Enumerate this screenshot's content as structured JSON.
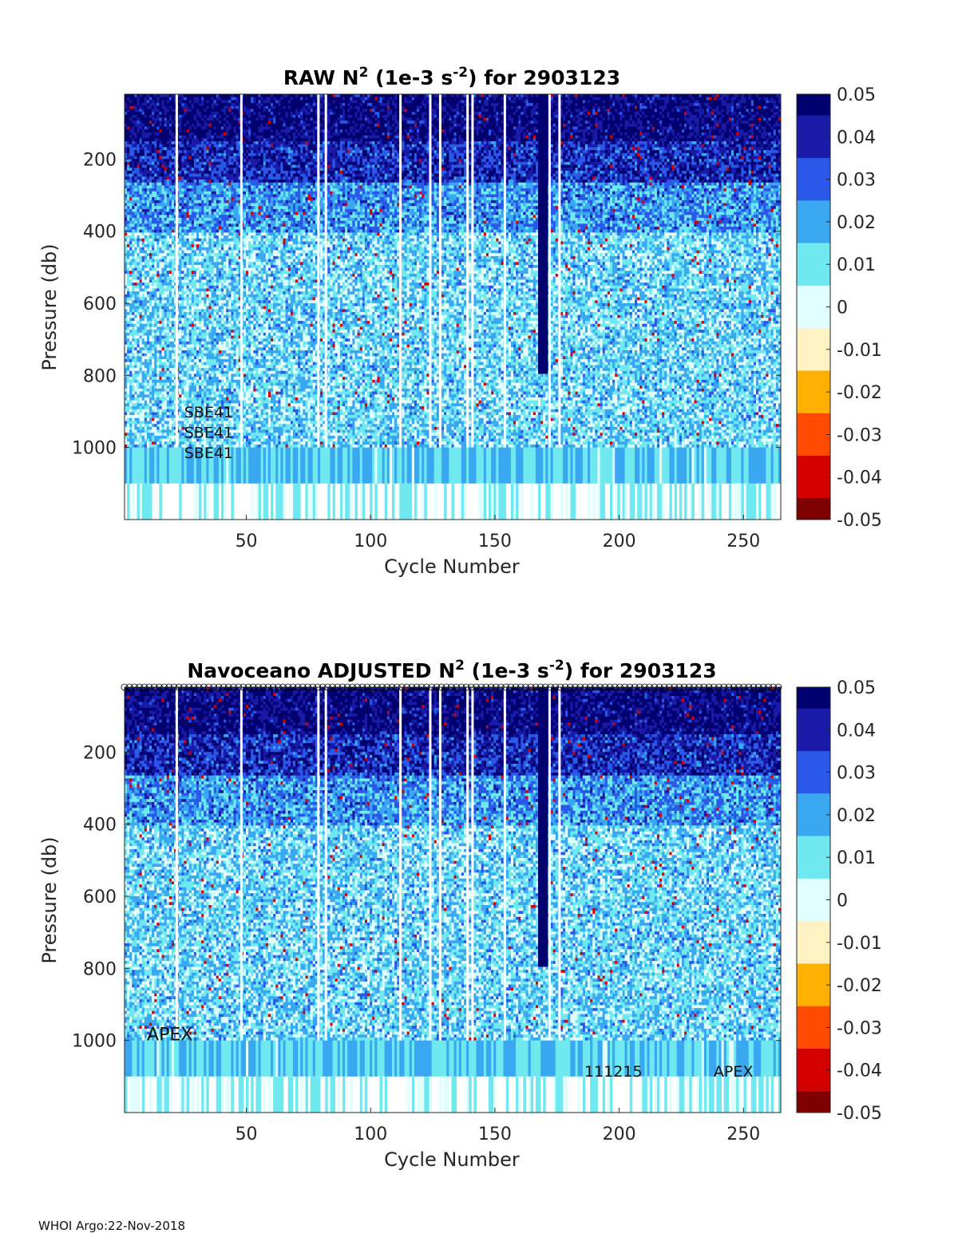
{
  "figure": {
    "footer": "WHOI Argo:22-Nov-2018"
  },
  "colorbar": {
    "ticks": [
      "0.05",
      "0.04",
      "0.03",
      "0.02",
      "0.01",
      "0",
      "-0.01",
      "-0.02",
      "-0.03",
      "-0.04",
      "-0.05"
    ],
    "colors": [
      "#7f0000",
      "#d40000",
      "#ff4a00",
      "#ffb000",
      "#fff2c2",
      "#e0ffff",
      "#6fe8f0",
      "#3aa8f0",
      "#2a58e8",
      "#1a1aa8",
      "#00006e"
    ]
  },
  "chart_data": [
    {
      "type": "heatmap",
      "title_prefix": "RAW N",
      "title_sup1": "2",
      "title_mid": " (1e-3 s",
      "title_sup2": "-2",
      "title_suffix": ") for 2903123",
      "xlabel": "Cycle Number",
      "ylabel": "Pressure (db)",
      "xlim": [
        1,
        265
      ],
      "ylim": [
        20,
        1200
      ],
      "xticks": [
        50,
        100,
        150,
        200,
        250
      ],
      "yticks": [
        200,
        400,
        600,
        800,
        1000
      ],
      "clim": [
        -0.05,
        0.05
      ],
      "gap_cycles": [
        22,
        48,
        79,
        82,
        112,
        124,
        128,
        139,
        141,
        154,
        172,
        176
      ],
      "strong_column_cycles": [
        [
          168,
          171
        ]
      ],
      "annotations": [
        {
          "text": "SBE41",
          "x": 25,
          "y": 917
        },
        {
          "text": "SBE41",
          "x": 25,
          "y": 973
        },
        {
          "text": "SBE41",
          "x": 25,
          "y": 1029
        }
      ]
    },
    {
      "type": "heatmap",
      "title_prefix": "Navoceano  ADJUSTED N",
      "title_sup1": "2",
      "title_mid": " (1e-3 s",
      "title_sup2": "-2",
      "title_suffix": ") for 2903123",
      "xlabel": "Cycle Number",
      "ylabel": "Pressure (db)",
      "xlim": [
        1,
        265
      ],
      "ylim": [
        20,
        1200
      ],
      "xticks": [
        50,
        100,
        150,
        200,
        250
      ],
      "yticks": [
        200,
        400,
        600,
        800,
        1000
      ],
      "clim": [
        -0.05,
        0.05
      ],
      "gap_cycles": [
        22,
        48,
        79,
        82,
        112,
        124,
        128,
        139,
        141,
        154,
        172,
        176
      ],
      "strong_column_cycles": [
        [
          168,
          171
        ]
      ],
      "annotations": [
        {
          "text": "APEX",
          "x": 10,
          "y": 1000
        },
        {
          "text": "111215",
          "x": 186,
          "y": 1100
        },
        {
          "text": "APEX",
          "x": 238,
          "y": 1100
        }
      ]
    }
  ]
}
